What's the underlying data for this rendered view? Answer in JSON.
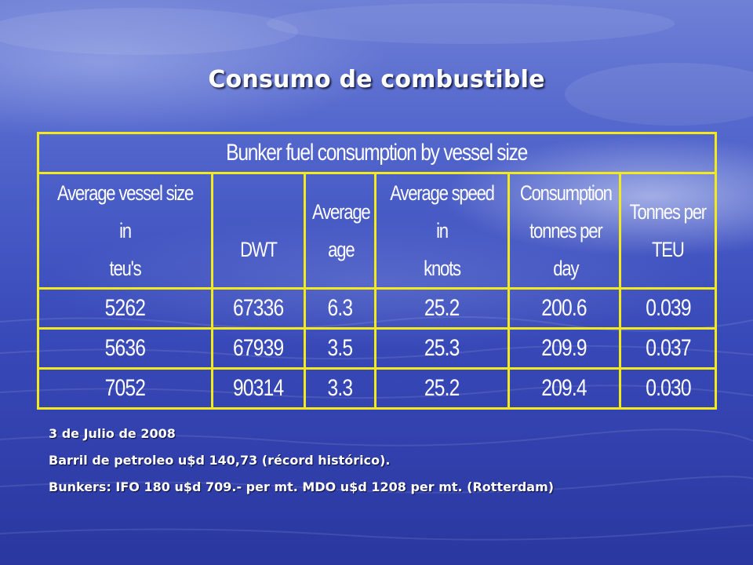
{
  "slide": {
    "title": "Consumo de combustible"
  },
  "table": {
    "caption": "Bunker fuel consumption by vessel size",
    "headers": [
      "Average vessel size in\nteu's",
      "\nDWT",
      "Average\nage",
      "Average speed in\nknots",
      "Consumption\ntonnes per day",
      "Tonnes per\nTEU"
    ],
    "rows": [
      [
        "5262",
        "67336",
        "6.3",
        "25.2",
        "200.6",
        "0.039"
      ],
      [
        "5636",
        "67939",
        "3.5",
        "25.3",
        "209.9",
        "0.037"
      ],
      [
        "7052",
        "90314",
        "3.3",
        "25.2",
        "209.4",
        "0.030"
      ]
    ]
  },
  "notes": {
    "date": "3 de Julio de 2008",
    "oil_price": "Barril de petroleo u$d 140,73 (récord histórico).",
    "bunkers": "Bunkers: IFO 180 u$d 709.- per mt. MDO u$d 1208 per mt. (Rotterdam)"
  },
  "colors": {
    "table_border": "#f2ea1c",
    "text": "#ffffff",
    "background": "#4457c3"
  }
}
